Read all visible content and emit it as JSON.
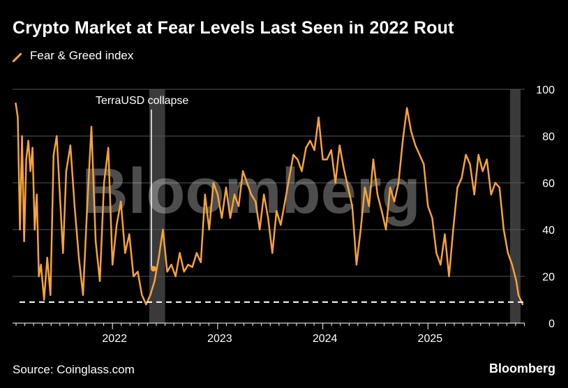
{
  "title": "Crypto Market at Fear Levels Last Seen in 2022 Rout",
  "source": "Source: Coinglass.com",
  "brand": "Bloomberg",
  "watermark": "Bloomberg",
  "colors": {
    "series": "#f5a33b",
    "grid": "#555555",
    "shade": "#3a3a3a",
    "background": "#000000"
  },
  "chart_data": {
    "type": "line",
    "title": "Crypto Market at Fear Levels Last Seen in 2022 Rout",
    "ylabel": "",
    "xlabel": "",
    "ylim": [
      0,
      100
    ],
    "xlim": [
      2021.05,
      2025.92
    ],
    "y_ticks": [
      "0",
      "20",
      "40",
      "60",
      "80",
      "100"
    ],
    "y_tick_values": [
      0,
      20,
      40,
      60,
      80,
      100
    ],
    "x_ticks": [
      {
        "label": "2022",
        "value": 2022
      },
      {
        "label": "2023",
        "value": 2023
      },
      {
        "label": "2024",
        "value": 2024
      },
      {
        "label": "2025",
        "value": 2025
      }
    ],
    "grid": true,
    "legend_position": "top-left",
    "series": [
      {
        "name": "Fear & Greed index",
        "x": [
          2021.08,
          2021.1,
          2021.12,
          2021.14,
          2021.16,
          2021.18,
          2021.2,
          2021.22,
          2021.24,
          2021.26,
          2021.28,
          2021.3,
          2021.32,
          2021.35,
          2021.38,
          2021.41,
          2021.44,
          2021.47,
          2021.5,
          2021.53,
          2021.56,
          2021.6,
          2021.64,
          2021.68,
          2021.72,
          2021.76,
          2021.8,
          2021.84,
          2021.88,
          2021.92,
          2021.96,
          2022.0,
          2022.04,
          2022.08,
          2022.12,
          2022.16,
          2022.2,
          2022.24,
          2022.28,
          2022.32,
          2022.36,
          2022.4,
          2022.44,
          2022.48,
          2022.52,
          2022.56,
          2022.6,
          2022.64,
          2022.68,
          2022.72,
          2022.76,
          2022.8,
          2022.84,
          2022.88,
          2022.92,
          2022.96,
          2023.0,
          2023.04,
          2023.08,
          2023.12,
          2023.16,
          2023.2,
          2023.24,
          2023.28,
          2023.32,
          2023.36,
          2023.4,
          2023.44,
          2023.48,
          2023.52,
          2023.56,
          2023.6,
          2023.64,
          2023.68,
          2023.72,
          2023.76,
          2023.8,
          2023.84,
          2023.88,
          2023.92,
          2023.96,
          2024.0,
          2024.04,
          2024.08,
          2024.12,
          2024.16,
          2024.2,
          2024.24,
          2024.28,
          2024.32,
          2024.36,
          2024.4,
          2024.44,
          2024.48,
          2024.52,
          2024.56,
          2024.6,
          2024.64,
          2024.68,
          2024.72,
          2024.76,
          2024.8,
          2024.84,
          2024.88,
          2024.92,
          2024.96,
          2025.0,
          2025.04,
          2025.08,
          2025.12,
          2025.16,
          2025.2,
          2025.24,
          2025.28,
          2025.32,
          2025.36,
          2025.4,
          2025.44,
          2025.48,
          2025.52,
          2025.56,
          2025.6,
          2025.64,
          2025.68,
          2025.72,
          2025.76,
          2025.8,
          2025.84,
          2025.86,
          2025.88,
          2025.9
        ],
        "values": [
          94,
          88,
          40,
          80,
          35,
          70,
          78,
          65,
          75,
          40,
          55,
          20,
          25,
          10,
          28,
          12,
          72,
          80,
          55,
          30,
          65,
          76,
          50,
          28,
          12,
          50,
          84,
          35,
          18,
          60,
          75,
          25,
          42,
          52,
          30,
          38,
          20,
          22,
          12,
          8,
          12,
          18,
          28,
          40,
          22,
          25,
          20,
          30,
          22,
          25,
          24,
          30,
          26,
          55,
          40,
          60,
          55,
          45,
          58,
          45,
          55,
          50,
          65,
          60,
          55,
          52,
          40,
          55,
          45,
          30,
          48,
          42,
          52,
          62,
          72,
          70,
          65,
          75,
          78,
          74,
          88,
          70,
          70,
          74,
          60,
          76,
          66,
          58,
          50,
          25,
          40,
          58,
          50,
          70,
          55,
          48,
          40,
          58,
          52,
          60,
          78,
          92,
          82,
          76,
          72,
          68,
          50,
          45,
          30,
          25,
          38,
          20,
          40,
          58,
          62,
          72,
          68,
          55,
          72,
          65,
          70,
          55,
          60,
          58,
          40,
          30,
          25,
          18,
          12,
          10,
          8
        ]
      }
    ],
    "reference_line": {
      "label": "",
      "value": 9
    },
    "shaded_periods": [
      {
        "start": 2022.35,
        "end": 2022.5
      },
      {
        "start": 2025.78,
        "end": 2025.88
      }
    ],
    "annotations": [
      {
        "text": "TerraUSD collapse",
        "x": 2022.37
      }
    ]
  }
}
